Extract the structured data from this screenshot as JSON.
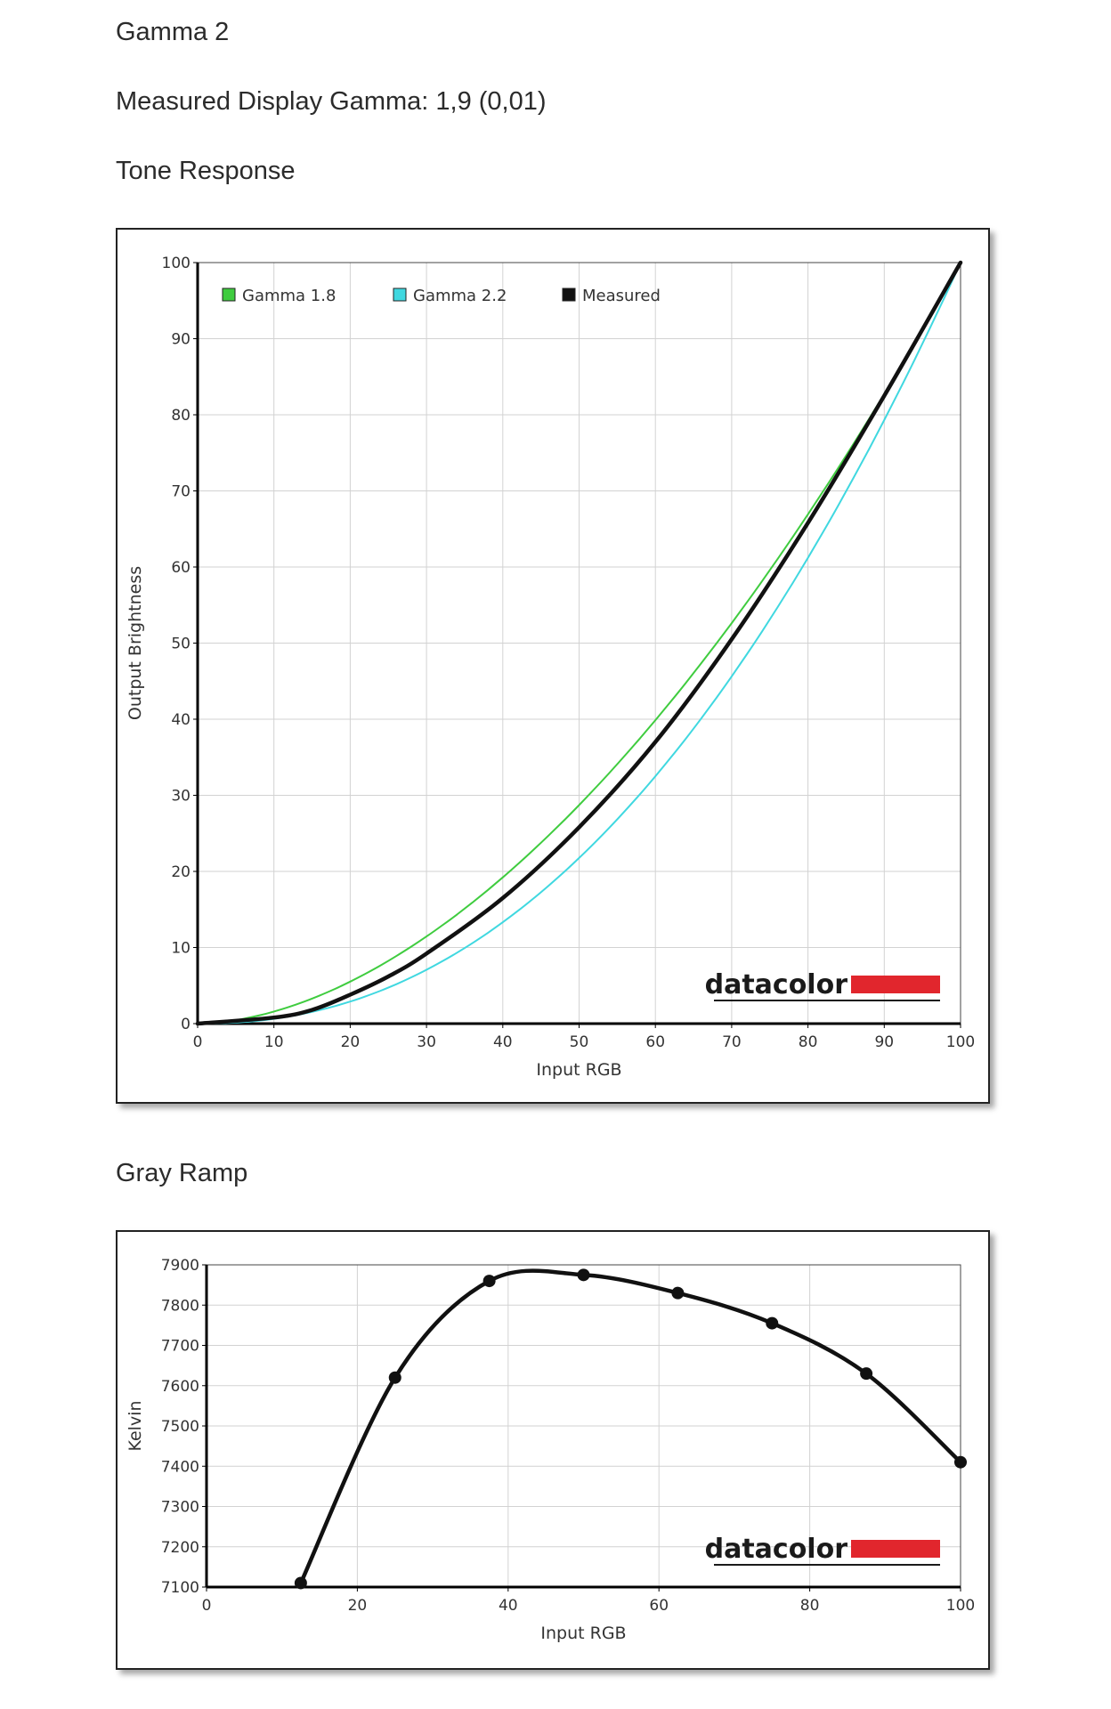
{
  "header": {
    "title": "Gamma 2",
    "measured_gamma": "Measured Display Gamma: 1,9 (0,01)",
    "tone_heading": "Tone Response",
    "gray_heading": "Gray Ramp"
  },
  "chart_data": [
    {
      "type": "line",
      "xlabel": "Input RGB",
      "ylabel": "Output Brightness",
      "xlim": [
        0,
        100
      ],
      "ylim": [
        0,
        100
      ],
      "xticks": [
        0,
        10,
        20,
        30,
        40,
        50,
        60,
        70,
        80,
        90,
        100
      ],
      "yticks": [
        0,
        10,
        20,
        30,
        40,
        50,
        60,
        70,
        80,
        90,
        100
      ],
      "grid": true,
      "legend_position": "top-left",
      "logo": "datacolor",
      "series": [
        {
          "name": "Gamma 1.8",
          "color": "#3fcc3f",
          "gamma": 1.8,
          "x": [
            0,
            10,
            20,
            30,
            40,
            50,
            60,
            70,
            80,
            90,
            100
          ],
          "y": [
            0,
            1.6,
            5.5,
            11.5,
            19.2,
            28.7,
            39.9,
            52.6,
            66.9,
            82.7,
            100
          ]
        },
        {
          "name": "Gamma 2.2",
          "color": "#40d8e0",
          "gamma": 2.2,
          "x": [
            0,
            10,
            20,
            30,
            40,
            50,
            60,
            70,
            80,
            90,
            100
          ],
          "y": [
            0,
            0.6,
            2.9,
            7.1,
            13.3,
            21.8,
            32.5,
            45.6,
            61.2,
            79.3,
            100
          ]
        },
        {
          "name": "Measured",
          "color": "#111111",
          "x": [
            0,
            10,
            15,
            20,
            25,
            30,
            40,
            50,
            60,
            70,
            80,
            90,
            100
          ],
          "y": [
            0,
            0.8,
            1.8,
            3.8,
            6.2,
            9.2,
            16.5,
            25.8,
            37.0,
            50.5,
            65.8,
            82.5,
            100
          ]
        }
      ]
    },
    {
      "type": "line",
      "xlabel": "Input RGB",
      "ylabel": "Kelvin",
      "xlim": [
        0,
        100
      ],
      "ylim": [
        7100,
        7900
      ],
      "xticks": [
        0,
        20,
        40,
        60,
        80,
        100
      ],
      "yticks": [
        7100,
        7200,
        7300,
        7400,
        7500,
        7600,
        7700,
        7800,
        7900
      ],
      "grid": true,
      "logo": "datacolor",
      "series": [
        {
          "color": "#111111",
          "x": [
            12.5,
            25,
            37.5,
            50,
            62.5,
            75,
            87.5,
            100
          ],
          "y": [
            7110,
            7620,
            7860,
            7875,
            7830,
            7755,
            7630,
            7410
          ]
        }
      ]
    }
  ]
}
